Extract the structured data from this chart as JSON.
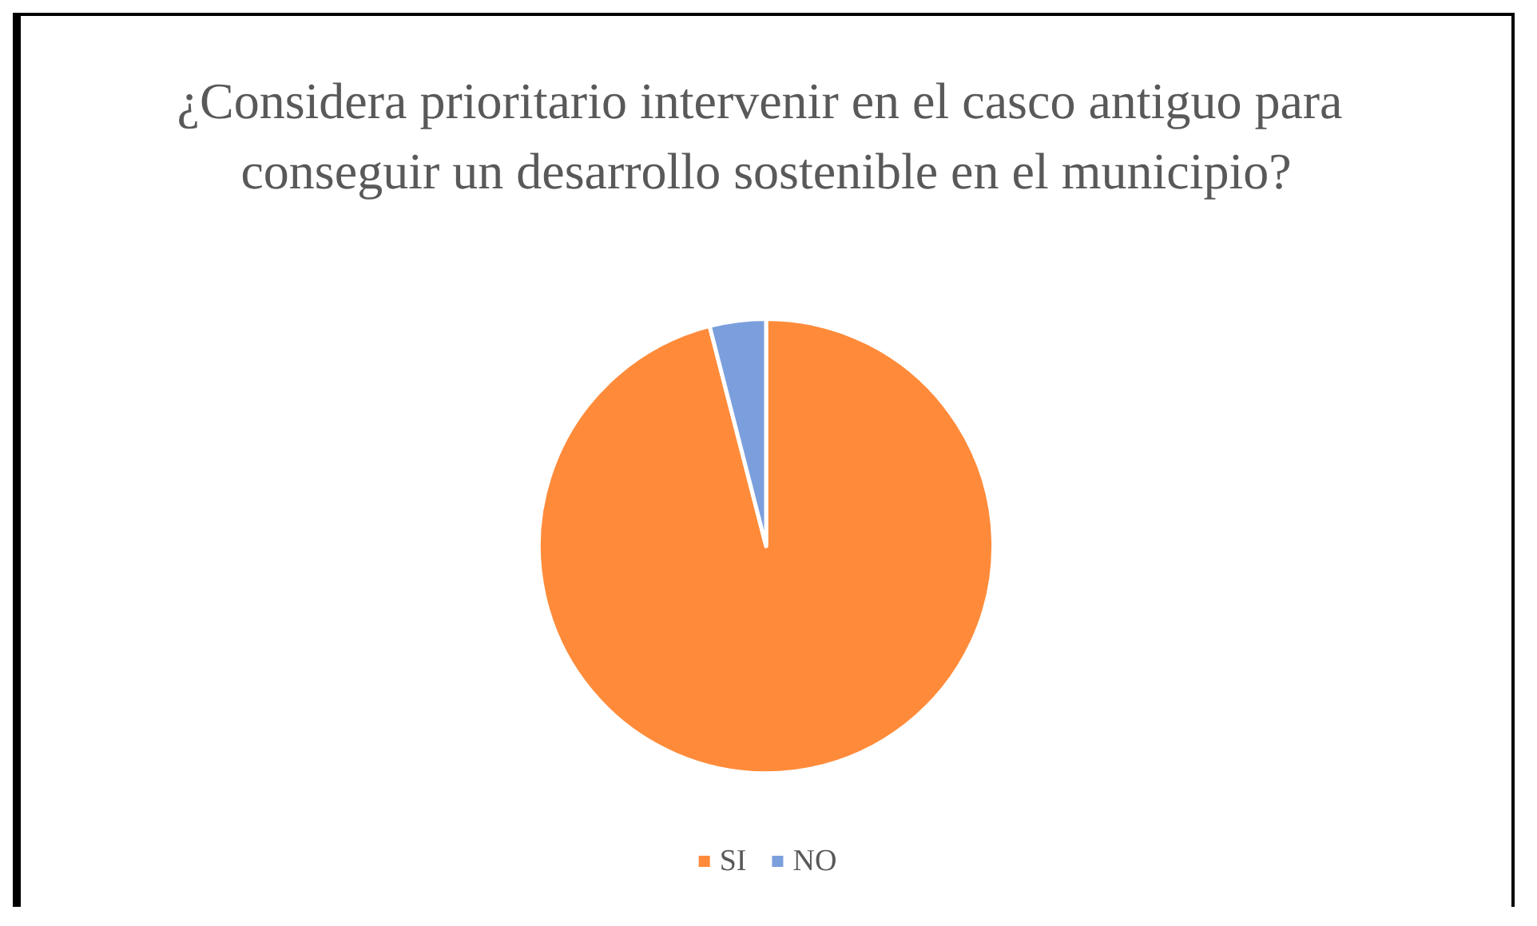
{
  "chart_data": {
    "type": "pie",
    "title": "¿Considera prioritario intervenir en el casco antiguo para conseguir un desarrollo sostenible en el municipio?",
    "categories": [
      "SI",
      "NO"
    ],
    "values": [
      96,
      4
    ],
    "colors": [
      "#ff8b3a",
      "#7b9fdd"
    ],
    "legend": "bottom"
  }
}
